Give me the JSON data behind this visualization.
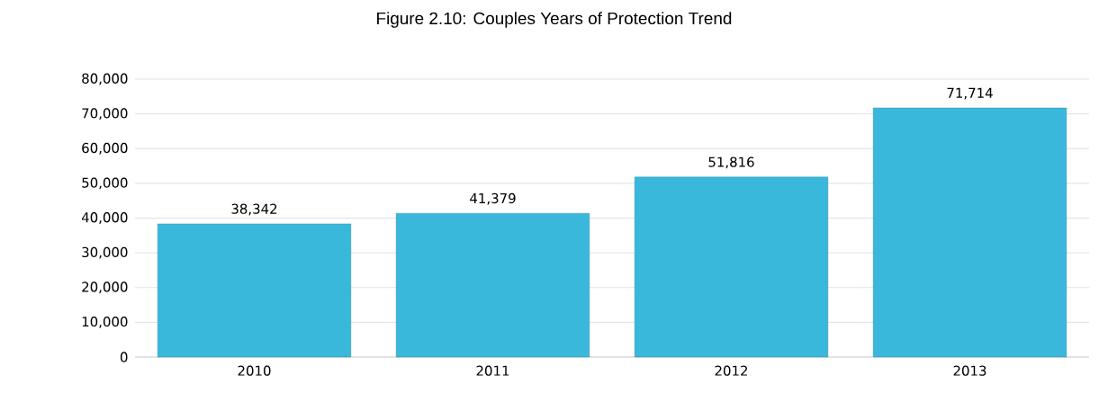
{
  "chart_data": {
    "type": "bar",
    "title": "Figure 2.10: Couples Years of Protection Trend",
    "categories": [
      "2010",
      "2011",
      "2012",
      "2013"
    ],
    "values": [
      38342,
      41379,
      51816,
      71714
    ],
    "value_labels": [
      "38,342",
      "41,379",
      "51,816",
      "71,714"
    ],
    "color": "#3ab8dc",
    "ylim": [
      0,
      80000
    ],
    "yticks": [
      {
        "value": 0,
        "label": "0"
      },
      {
        "value": 10000,
        "label": "10,000"
      },
      {
        "value": 20000,
        "label": "20,000"
      },
      {
        "value": 30000,
        "label": "30,000"
      },
      {
        "value": 40000,
        "label": "40,000"
      },
      {
        "value": 50000,
        "label": "50,000"
      },
      {
        "value": 60000,
        "label": "60,000"
      },
      {
        "value": 70000,
        "label": "70,000"
      },
      {
        "value": 80000,
        "label": "80,000"
      }
    ],
    "grid": "y"
  }
}
